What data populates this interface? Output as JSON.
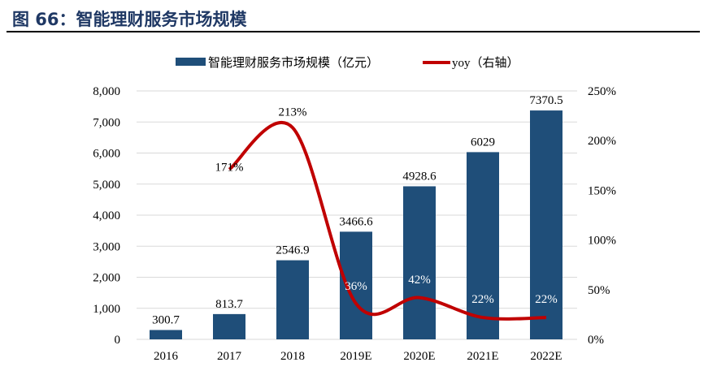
{
  "title": "图 66：智能理财服务市场规模",
  "chart_data": {
    "type": "bar",
    "categories": [
      "2016",
      "2017",
      "2018",
      "2019E",
      "2020E",
      "2021E",
      "2022E"
    ],
    "series": [
      {
        "name": "智能理财服务市场规模（亿元）",
        "type": "bar",
        "axis": "left",
        "color": "#1f4e79",
        "values": [
          300.7,
          813.7,
          2546.9,
          3466.6,
          4928.6,
          6029,
          7370.5
        ],
        "labels": [
          "300.7",
          "813.7",
          "2546.9",
          "3466.6",
          "4928.6",
          "6029",
          "7370.5"
        ]
      },
      {
        "name": "yoy（右轴）",
        "type": "line",
        "axis": "right",
        "color": "#c00000",
        "values": [
          null,
          171,
          213,
          36,
          42,
          22,
          22
        ],
        "labels": [
          "",
          "171%",
          "213%",
          "36%",
          "42%",
          "22%",
          "22%"
        ]
      }
    ],
    "y_left": {
      "min": 0,
      "max": 8000,
      "ticks": [
        "0",
        "1,000",
        "2,000",
        "3,000",
        "4,000",
        "5,000",
        "6,000",
        "7,000",
        "8,000"
      ]
    },
    "y_right": {
      "min": 0,
      "max": 250,
      "ticks": [
        "0%",
        "50%",
        "100%",
        "150%",
        "200%",
        "250%"
      ]
    },
    "grid": true,
    "legend": "top"
  }
}
